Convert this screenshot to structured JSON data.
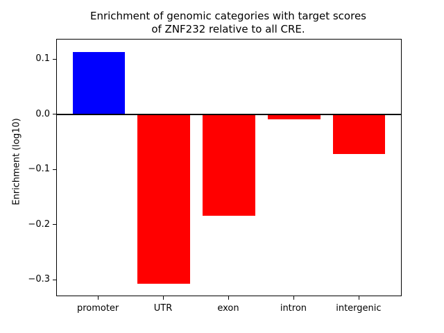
{
  "chart_data": {
    "type": "bar",
    "title": "Enrichment of genomic categories with target scores\nof ZNF232 relative to all CRE.",
    "ylabel": "Enrichment (log10)",
    "xlabel": "",
    "categories": [
      "promoter",
      "UTR",
      "exon",
      "intron",
      "intergenic"
    ],
    "values": [
      0.113,
      -0.307,
      -0.184,
      -0.008,
      -0.071
    ],
    "bar_colors": [
      "#0000ff",
      "#ff0000",
      "#ff0000",
      "#ff0000",
      "#ff0000"
    ],
    "positive_color": "#0000ff",
    "negative_color": "#ff0000",
    "bar_width": 0.8,
    "xlim": [
      -0.64,
      4.64
    ],
    "ylim": [
      -0.328,
      0.136
    ],
    "yticks": [
      0.1,
      0.0,
      -0.1,
      -0.2,
      -0.3
    ],
    "ytick_labels": [
      "0.1",
      "0.0",
      "−0.1",
      "−0.2",
      "−0.3"
    ],
    "zero_line": true,
    "grid": false,
    "legend": "none",
    "background_color": "#ffffff",
    "axis_color": "#000000",
    "text_color": "#000000"
  }
}
